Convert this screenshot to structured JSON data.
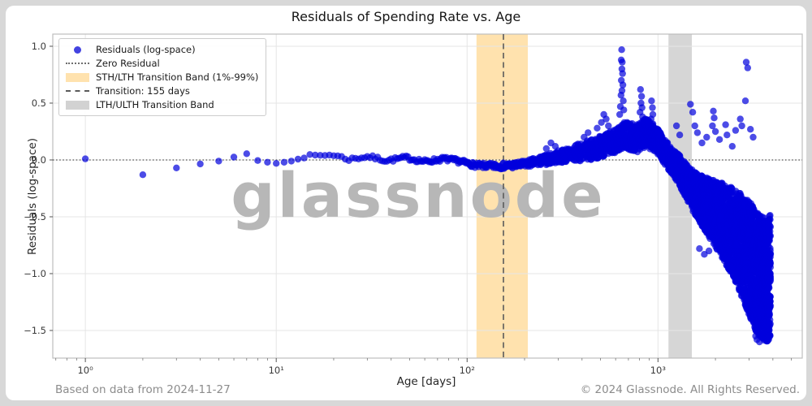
{
  "title": "Residuals of Spending Rate vs. Age",
  "watermark": "glassnode",
  "footer": {
    "left": "Based on data from 2024-11-27",
    "right": "© 2024 Glassnode. All Rights Reserved."
  },
  "legend": {
    "items": [
      {
        "glyph": "dot",
        "label": "Residuals (log-space)"
      },
      {
        "glyph": "dotted",
        "label": "Zero Residual"
      },
      {
        "glyph": "band-orange",
        "label": "STH/LTH Transition Band (1%-99%)"
      },
      {
        "glyph": "dashed",
        "label": "Transition: 155 days"
      },
      {
        "glyph": "band-gray",
        "label": "LTH/ULTH Transition Band"
      }
    ]
  },
  "chart_data": {
    "type": "scatter",
    "title": "Residuals of Spending Rate vs. Age",
    "xlabel": "Age [days]",
    "ylabel": "Residuals (log-space)",
    "x_scale": "log",
    "xlim": [
      0.675,
      5700
    ],
    "ylim": [
      -1.743,
      1.107
    ],
    "xticks": [
      1,
      10,
      100,
      1000
    ],
    "xtick_labels": [
      "10⁰",
      "10¹",
      "10²",
      "10³"
    ],
    "yticks": [
      1.0,
      0.5,
      0.0,
      -0.5,
      -1.0,
      -1.5
    ],
    "grid": true,
    "legend_position": "upper left",
    "zero_residual": 0.0,
    "transition_days": 155,
    "sth_lth_band_days": [
      112,
      208
    ],
    "lth_ulth_band_days": [
      1135,
      1505
    ],
    "colors": {
      "point": "#0000dd",
      "point_opacity": 0.7,
      "sth_band": "#ffe2ae",
      "lth_band": "#d6d6d6",
      "zero_line": "#4d4d4d",
      "transition_line": "#5a5a5a",
      "grid": "#e5e5e5",
      "spine": "#bdbdbd",
      "tick_text": "#3a3a3a",
      "watermark": "#b7b7b7"
    },
    "points_explicit": [
      [
        1,
        0.01
      ],
      [
        2,
        -0.13
      ],
      [
        3,
        -0.07
      ],
      [
        4,
        -0.035
      ],
      [
        5,
        -0.01
      ],
      [
        6,
        0.025
      ],
      [
        7,
        0.055
      ],
      [
        8,
        -0.005
      ],
      [
        9,
        -0.02
      ],
      [
        10,
        -0.03
      ],
      [
        11,
        -0.02
      ],
      [
        12,
        -0.01
      ]
    ],
    "outliers": [
      [
        260,
        0.1
      ],
      [
        275,
        0.15
      ],
      [
        290,
        0.12
      ],
      [
        410,
        0.2
      ],
      [
        430,
        0.24
      ],
      [
        480,
        0.28
      ],
      [
        505,
        0.33
      ],
      [
        520,
        0.4
      ],
      [
        535,
        0.36
      ],
      [
        550,
        0.3
      ],
      [
        630,
        0.4
      ],
      [
        635,
        0.47
      ],
      [
        640,
        0.57
      ],
      [
        642,
        0.88
      ],
      [
        643,
        0.7
      ],
      [
        645,
        0.97
      ],
      [
        647,
        0.8
      ],
      [
        648,
        0.61
      ],
      [
        650,
        0.86
      ],
      [
        652,
        0.76
      ],
      [
        655,
        0.66
      ],
      [
        658,
        0.52
      ],
      [
        662,
        0.44
      ],
      [
        805,
        0.42
      ],
      [
        810,
        0.62
      ],
      [
        815,
        0.5
      ],
      [
        820,
        0.56
      ],
      [
        825,
        0.46
      ],
      [
        830,
        0.38
      ],
      [
        920,
        0.36
      ],
      [
        925,
        0.52
      ],
      [
        935,
        0.46
      ],
      [
        940,
        0.4
      ],
      [
        1250,
        0.3
      ],
      [
        1300,
        0.22
      ],
      [
        1480,
        0.49
      ],
      [
        1520,
        0.42
      ],
      [
        1560,
        0.3
      ],
      [
        1610,
        0.24
      ],
      [
        1650,
        -0.78
      ],
      [
        1700,
        0.15
      ],
      [
        1750,
        -0.83
      ],
      [
        1800,
        0.2
      ],
      [
        1850,
        -0.8
      ],
      [
        1930,
        0.3
      ],
      [
        1950,
        0.43
      ],
      [
        1970,
        0.37
      ],
      [
        2000,
        0.25
      ],
      [
        2100,
        0.18
      ],
      [
        2260,
        0.31
      ],
      [
        2300,
        0.22
      ],
      [
        2450,
        0.12
      ],
      [
        2550,
        0.26
      ],
      [
        2700,
        0.36
      ],
      [
        2750,
        0.3
      ],
      [
        2870,
        0.52
      ],
      [
        2900,
        0.86
      ],
      [
        2950,
        0.81
      ],
      [
        3050,
        0.27
      ],
      [
        3150,
        0.2
      ],
      [
        3250,
        -1.55
      ],
      [
        3300,
        -1.58
      ],
      [
        3400,
        -1.6
      ],
      [
        3500,
        -1.52
      ]
    ],
    "cloud": {
      "age_start": 13,
      "age_end": 3890,
      "seed": 7,
      "mean_anchors": [
        [
          1.1,
          0.015
        ],
        [
          1.17,
          0.035
        ],
        [
          1.3,
          0.045
        ],
        [
          1.38,
          0.005
        ],
        [
          1.48,
          0.03
        ],
        [
          1.58,
          -0.005
        ],
        [
          1.68,
          0.02
        ],
        [
          1.78,
          -0.015
        ],
        [
          1.88,
          0.01
        ],
        [
          1.97,
          -0.015
        ],
        [
          2.05,
          -0.05
        ],
        [
          2.16,
          -0.055
        ],
        [
          2.27,
          -0.045
        ],
        [
          2.37,
          -0.015
        ],
        [
          2.47,
          0.025
        ],
        [
          2.57,
          0.06
        ],
        [
          2.67,
          0.1
        ],
        [
          2.77,
          0.16
        ],
        [
          2.83,
          0.22
        ],
        [
          2.89,
          0.19
        ],
        [
          2.94,
          0.245
        ],
        [
          3.0,
          0.16
        ],
        [
          3.04,
          0.06
        ],
        [
          3.1,
          -0.06
        ],
        [
          3.15,
          -0.19
        ],
        [
          3.19,
          -0.29
        ],
        [
          3.26,
          -0.41
        ],
        [
          3.33,
          -0.52
        ],
        [
          3.41,
          -0.67
        ],
        [
          3.48,
          -0.87
        ],
        [
          3.53,
          -1.02
        ],
        [
          3.57,
          -1.06
        ],
        [
          3.6,
          -1.0
        ]
      ],
      "spread_anchors": [
        [
          1.1,
          0.012
        ],
        [
          1.6,
          0.018
        ],
        [
          2.0,
          0.02
        ],
        [
          2.3,
          0.03
        ],
        [
          2.45,
          0.05
        ],
        [
          2.6,
          0.08
        ],
        [
          2.72,
          0.1
        ],
        [
          2.85,
          0.12
        ],
        [
          2.95,
          0.125
        ],
        [
          3.02,
          0.11
        ],
        [
          3.08,
          0.12
        ],
        [
          3.15,
          0.15
        ],
        [
          3.22,
          0.21
        ],
        [
          3.31,
          0.3
        ],
        [
          3.4,
          0.4
        ],
        [
          3.5,
          0.53
        ],
        [
          3.6,
          0.55
        ]
      ]
    }
  }
}
